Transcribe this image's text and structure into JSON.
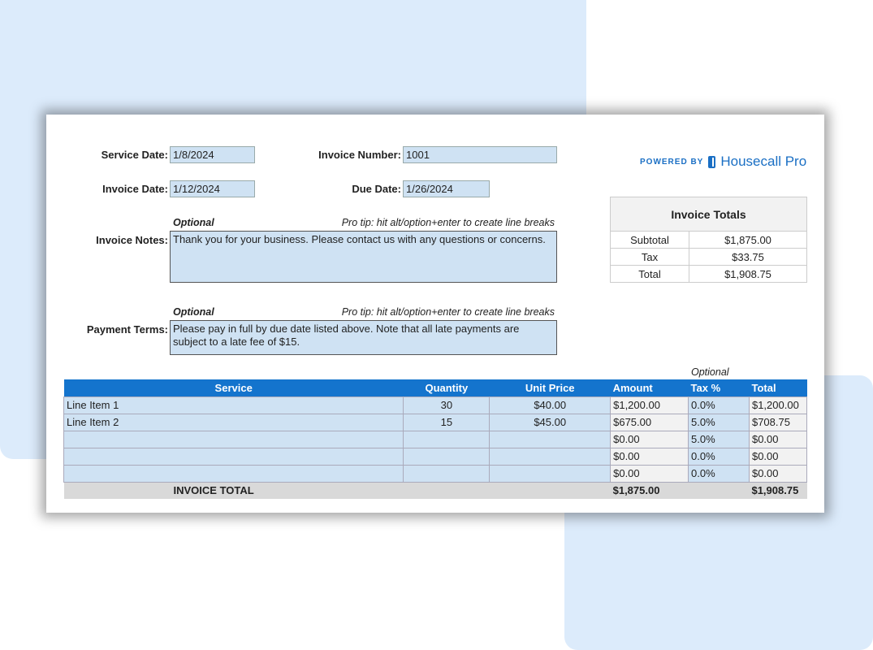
{
  "logo": {
    "powered_by": "POWERED BY",
    "brand": "Housecall Pro",
    "color": "#1a6fc4"
  },
  "fields": {
    "service_date": {
      "label": "Service Date:",
      "value": "1/8/2024"
    },
    "invoice_number": {
      "label": "Invoice Number:",
      "value": "1001"
    },
    "invoice_date": {
      "label": "Invoice Date:",
      "value": "1/12/2024"
    },
    "due_date": {
      "label": "Due Date:",
      "value": "1/26/2024"
    }
  },
  "notes": {
    "optional": "Optional",
    "tip": "Pro tip:  hit alt/option+enter to create line breaks",
    "label": "Invoice Notes:",
    "value": "Thank you for your business. Please contact us with any questions or concerns."
  },
  "terms": {
    "optional": "Optional",
    "tip": "Pro tip:  hit alt/option+enter to create line breaks",
    "label": "Payment Terms:",
    "value": "Please pay in full by due date listed above. Note that all late payments are subject to a late fee of $15."
  },
  "totals": {
    "title": "Invoice Totals",
    "rows": [
      {
        "label": "Subtotal",
        "value": "$1,875.00"
      },
      {
        "label": "Tax",
        "value": "$33.75"
      },
      {
        "label": "Total",
        "value": "$1,908.75"
      }
    ]
  },
  "line_items": {
    "optional": "Optional",
    "headers": [
      "Service",
      "Quantity",
      "Unit Price",
      "Amount",
      "Tax %",
      "Total"
    ],
    "header_color": "#1474cd",
    "rows": [
      [
        "Line Item 1",
        "30",
        "$40.00",
        "$1,200.00",
        "0.0%",
        "$1,200.00"
      ],
      [
        "Line Item 2",
        "15",
        "$45.00",
        "$675.00",
        "5.0%",
        "$708.75"
      ],
      [
        "",
        "",
        "",
        "$0.00",
        "5.0%",
        "$0.00"
      ],
      [
        "",
        "",
        "",
        "$0.00",
        "0.0%",
        "$0.00"
      ],
      [
        "",
        "",
        "",
        "$0.00",
        "0.0%",
        "$0.00"
      ]
    ],
    "footer": {
      "label": "INVOICE TOTAL",
      "amount": "$1,875.00",
      "total": "$1,908.75"
    }
  }
}
